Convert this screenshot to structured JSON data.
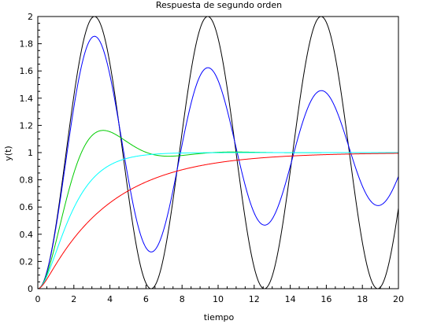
{
  "chart_data": {
    "type": "line",
    "title": "Respuesta de segundo orden",
    "xlabel": "tiempo",
    "ylabel": "y(t)",
    "xlim": [
      0,
      20
    ],
    "ylim": [
      0,
      2
    ],
    "grid": false,
    "legend": "none",
    "x_ticks": [
      "0",
      "2",
      "4",
      "6",
      "8",
      "10",
      "12",
      "14",
      "16",
      "18",
      "20"
    ],
    "y_ticks": [
      "0",
      "0.2",
      "0.4",
      "0.6",
      "0.8",
      "1",
      "1.2",
      "1.4",
      "1.6",
      "1.8",
      "2"
    ],
    "series": [
      {
        "color": "#000000",
        "omega_n": 1,
        "zeta": 0
      },
      {
        "color": "#0000ff",
        "omega_n": 1,
        "zeta": 0.05
      },
      {
        "color": "#00cc00",
        "omega_n": 1,
        "zeta": 0.5
      },
      {
        "color": "#00ffff",
        "omega_n": 1,
        "zeta": 1
      },
      {
        "color": "#ff0000",
        "omega_n": 1,
        "zeta": 2
      }
    ]
  }
}
